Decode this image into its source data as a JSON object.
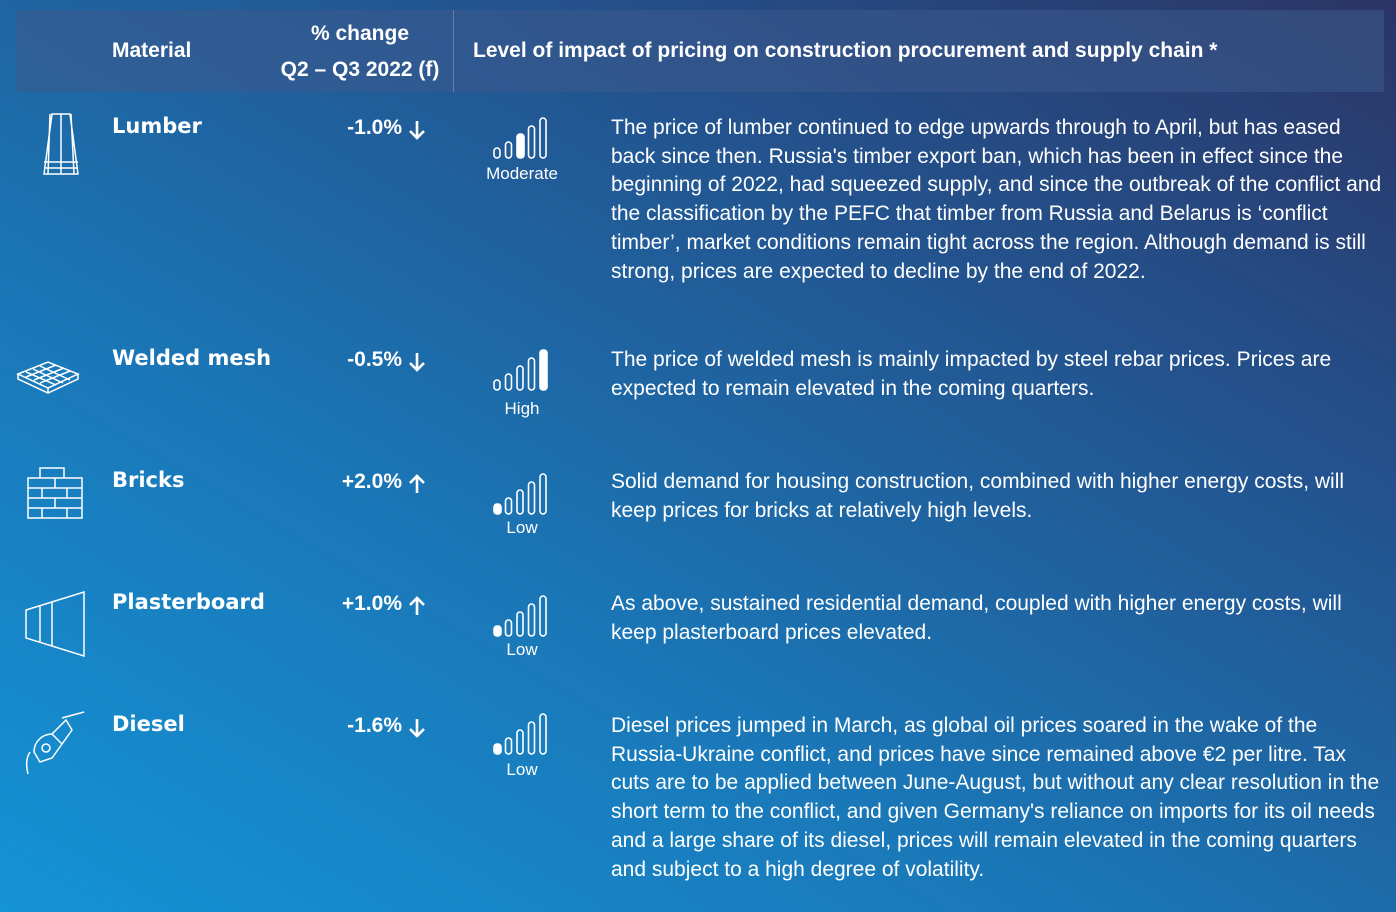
{
  "header": {
    "material": "Material",
    "change_line1": "% change",
    "change_line2": "Q2 – Q3 2022 (f)",
    "impact": "Level of impact of pricing on construction procurement and supply chain *"
  },
  "rows": [
    {
      "material": "Lumber",
      "change": "-1.0%",
      "level": "Moderate",
      "description": "The price of lumber continued to edge upwards through to April, but has eased back since then. Russia's timber export ban, which has been in effect since the beginning of 2022, had squeezed supply, and since the outbreak of the conflict and the classification by the PEFC that timber from Russia and Belarus is ‘conflict timber’, market conditions remain tight across the region. Although demand is still strong, prices are expected to decline by the end of 2022."
    },
    {
      "material": "Welded mesh",
      "change": "-0.5%",
      "level": "High",
      "description": "The price of welded mesh is mainly impacted by steel rebar prices. Prices are expected to remain elevated in the coming quarters."
    },
    {
      "material": "Bricks",
      "change": "+2.0%",
      "level": "Low",
      "description": "Solid demand for housing construction, combined with higher energy costs, will keep prices for bricks at relatively high levels."
    },
    {
      "material": "Plasterboard",
      "change": "+1.0%",
      "level": "Low",
      "description": "As above, sustained residential demand, coupled with higher energy costs, will keep plasterboard prices elevated."
    },
    {
      "material": "Diesel",
      "change": "-1.6%",
      "level": "Low",
      "description": "Diesel prices jumped in March, as global oil prices soared in the wake of the Russia-Ukraine conflict, and prices have since remained above €2 per litre. Tax cuts are to be applied between June-August, but without any clear resolution in the short term to the conflict, and given Germany's reliance on imports for its oil needs and a large share of its diesel, prices will remain elevated in the coming quarters and subject to a high degree of volatility."
    }
  ]
}
